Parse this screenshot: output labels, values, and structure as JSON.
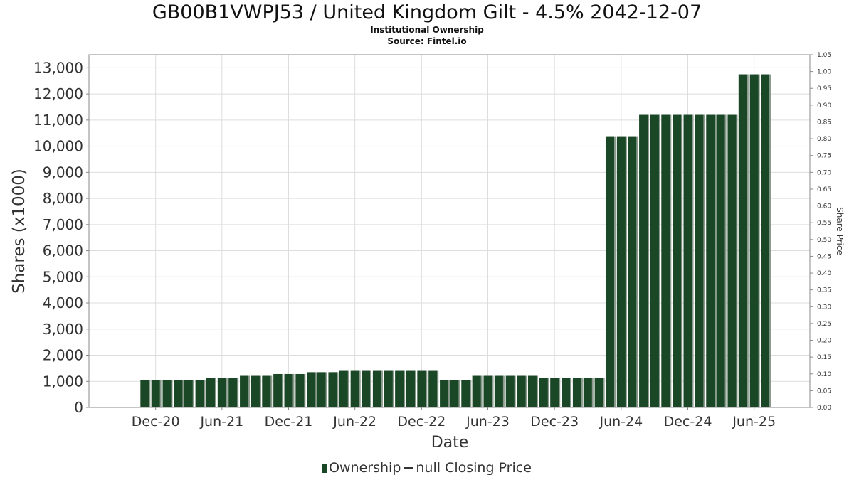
{
  "title": "GB00B1VWPJ53 / United Kingdom Gilt - 4.5% 2042-12-07",
  "subtitle": "Institutional Ownership",
  "source": "Source: Fintel.io",
  "legend": {
    "ownership_label": "Ownership",
    "price_label": "null Closing Price"
  },
  "colors": {
    "bar": "#1a4726",
    "bar_shadow": "#8a9a8c",
    "grid": "#dddddd",
    "axis": "#888888"
  },
  "chart_data": {
    "type": "bar",
    "title": "GB00B1VWPJ53 / United Kingdom Gilt - 4.5% 2042-12-07",
    "xlabel": "Date",
    "ylabel": "Shares (x1000)",
    "y2label": "Share Price",
    "ylim": [
      0,
      13500
    ],
    "y2lim": [
      0,
      1.05
    ],
    "yticks": [
      0,
      1000,
      2000,
      3000,
      4000,
      5000,
      6000,
      7000,
      8000,
      9000,
      10000,
      11000,
      12000,
      13000
    ],
    "ytick_labels": [
      "0",
      "1,000",
      "2,000",
      "3,000",
      "4,000",
      "5,000",
      "6,000",
      "7,000",
      "8,000",
      "9,000",
      "10,000",
      "11,000",
      "12,000",
      "13,000"
    ],
    "y2ticks": [
      0,
      0.05,
      0.1,
      0.15,
      0.2,
      0.25,
      0.3,
      0.35,
      0.4,
      0.45,
      0.5,
      0.55,
      0.6,
      0.65,
      0.7,
      0.75,
      0.8,
      0.85,
      0.9,
      0.95,
      1.0,
      1.05
    ],
    "y2tick_labels": [
      "0.00",
      "0.05",
      "0.10",
      "0.15",
      "0.20",
      "0.25",
      "0.30",
      "0.35",
      "0.40",
      "0.45",
      "0.50",
      "0.55",
      "0.60",
      "0.65",
      "0.70",
      "0.75",
      "0.80",
      "0.85",
      "0.90",
      "0.95",
      "1.00",
      "1.05"
    ],
    "xtick_labels": [
      "Dec-20",
      "Jun-21",
      "Dec-21",
      "Jun-22",
      "Dec-22",
      "Jun-23",
      "Dec-23",
      "Jun-24",
      "Dec-24",
      "Jun-25"
    ],
    "xtick_dates": [
      "2020-12-01",
      "2021-06-01",
      "2021-12-01",
      "2022-06-01",
      "2022-12-01",
      "2023-06-01",
      "2023-12-01",
      "2024-06-01",
      "2024-12-01",
      "2025-06-01"
    ],
    "x_range": [
      "2020-06-01",
      "2025-11-01"
    ],
    "grid": true,
    "legend_position": "bottom",
    "series": [
      {
        "name": "Ownership",
        "x": [
          "2020-09-01",
          "2020-10-01",
          "2020-11-01",
          "2020-12-01",
          "2021-01-01",
          "2021-02-01",
          "2021-03-01",
          "2021-04-01",
          "2021-05-01",
          "2021-06-01",
          "2021-07-01",
          "2021-08-01",
          "2021-09-01",
          "2021-10-01",
          "2021-11-01",
          "2021-12-01",
          "2022-01-01",
          "2022-02-01",
          "2022-03-01",
          "2022-04-01",
          "2022-05-01",
          "2022-06-01",
          "2022-07-01",
          "2022-08-01",
          "2022-09-01",
          "2022-10-01",
          "2022-11-01",
          "2022-12-01",
          "2023-01-01",
          "2023-02-01",
          "2023-03-01",
          "2023-04-01",
          "2023-05-01",
          "2023-06-01",
          "2023-07-01",
          "2023-08-01",
          "2023-09-01",
          "2023-10-01",
          "2023-11-01",
          "2023-12-01",
          "2024-01-01",
          "2024-02-01",
          "2024-03-01",
          "2024-04-01",
          "2024-05-01",
          "2024-06-01",
          "2024-07-01",
          "2024-08-01",
          "2024-09-01",
          "2024-10-01",
          "2024-11-01",
          "2024-12-01",
          "2025-01-01",
          "2025-02-01",
          "2025-03-01",
          "2025-04-01",
          "2025-05-01",
          "2025-06-01",
          "2025-07-01"
        ],
        "values": [
          15,
          15,
          1050,
          1050,
          1050,
          1050,
          1050,
          1050,
          1120,
          1120,
          1120,
          1210,
          1210,
          1210,
          1280,
          1280,
          1280,
          1350,
          1350,
          1350,
          1400,
          1400,
          1400,
          1400,
          1400,
          1400,
          1400,
          1400,
          1400,
          1050,
          1050,
          1050,
          1210,
          1210,
          1210,
          1210,
          1210,
          1210,
          1120,
          1120,
          1120,
          1120,
          1120,
          1120,
          10380,
          10380,
          10380,
          11200,
          11200,
          11200,
          11200,
          11200,
          11200,
          11200,
          11200,
          11200,
          12750,
          12750,
          12750
        ]
      }
    ]
  }
}
